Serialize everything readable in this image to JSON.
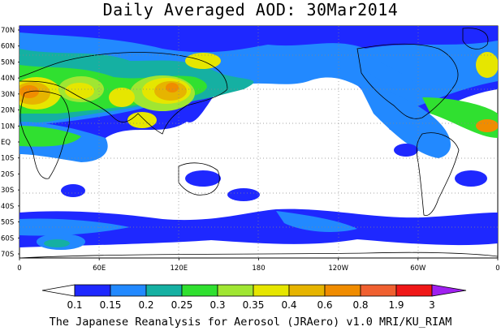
{
  "title": "Daily Averaged AOD: 30Mar2014",
  "footer": "The Japanese Reanalysis for Aerosol (JRAero) v1.0 MRI/KU_RIAM",
  "lat_labels": [
    "70N",
    "60N",
    "50N",
    "40N",
    "30N",
    "20N",
    "10N",
    "EQ",
    "10S",
    "20S",
    "30S",
    "40S",
    "50S",
    "60S",
    "70S"
  ],
  "lon_labels": [
    "0",
    "60E",
    "120E",
    "180",
    "120W",
    "60W",
    "0"
  ],
  "colorbar": {
    "labels": [
      "0.1",
      "0.15",
      "0.2",
      "0.25",
      "0.3",
      "0.35",
      "0.4",
      "0.6",
      "0.8",
      "1.9",
      "3"
    ],
    "colors": [
      "#ffffff",
      "#1e28ff",
      "#2289ff",
      "#15b0a2",
      "#30e030",
      "#a0e632",
      "#e6e600",
      "#e6b400",
      "#f08c00",
      "#f06030",
      "#f01818",
      "#a020f0"
    ],
    "colors_note": ""
  },
  "aod_regions": [
    {
      "lon": 40,
      "lat": 30,
      "level": 7
    },
    {
      "lon": 15,
      "lat": 35,
      "level": 8
    },
    {
      "lon": 105,
      "lat": 30,
      "level": 8
    },
    {
      "lon": 80,
      "lat": 22,
      "level": 6
    },
    {
      "lon": 90,
      "lat": 45,
      "level": 5
    }
  ]
}
